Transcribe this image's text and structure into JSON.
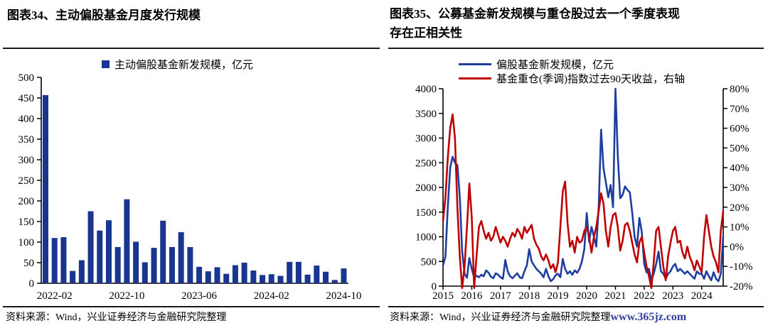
{
  "colors": {
    "navy": "#18368f",
    "blue_line": "#1d3e9e",
    "red_line": "#c00000",
    "axis": "#000000",
    "watermark_blue": "#31419f"
  },
  "left_panel": {
    "title": "图表34、主动偏股基金月度发行规模",
    "legend": "主动偏股基金新发规模，亿元",
    "source": "资料来源：Wind，兴业证券经济与金融研究院整理"
  },
  "right_panel": {
    "title_line1": "图表35、公募基金新发规模与重仓股过去一个季度表现",
    "title_line2": "存在正相关性",
    "legend_blue": "偏股基金新发规模，亿元",
    "legend_red": "基金重仓(季调)指数过去90天收益，右轴",
    "source": "资料来源：Wind，兴业证券经济与金融研究院整理",
    "watermark": "www.365jz.com"
  },
  "chart_data": [
    {
      "type": "bar",
      "title": "主动偏股基金月度发行规模",
      "ylabel": "亿元",
      "ylim": [
        0,
        500
      ],
      "ytick_step": 50,
      "grid": false,
      "categories": [
        "2022-01",
        "2022-02",
        "2022-03",
        "2022-04",
        "2022-05",
        "2022-06",
        "2022-07",
        "2022-08",
        "2022-09",
        "2022-10",
        "2022-11",
        "2022-12",
        "2023-01",
        "2023-02",
        "2023-03",
        "2023-04",
        "2023-05",
        "2023-06",
        "2023-07",
        "2023-08",
        "2023-09",
        "2023-10",
        "2023-11",
        "2023-12",
        "2024-01",
        "2024-02",
        "2024-03",
        "2024-04",
        "2024-05",
        "2024-06",
        "2024-07",
        "2024-08",
        "2024-09",
        "2024-10"
      ],
      "values": [
        457,
        110,
        112,
        30,
        56,
        175,
        128,
        153,
        88,
        204,
        101,
        51,
        86,
        152,
        88,
        124,
        88,
        40,
        29,
        39,
        23,
        44,
        50,
        31,
        20,
        22,
        18,
        52,
        52,
        21,
        43,
        28,
        8,
        36
      ],
      "x_tick_labels": [
        "2022-02",
        "2022-10",
        "2023-06",
        "2024-02",
        "2024-10"
      ],
      "x_tick_indices": [
        1,
        9,
        17,
        25,
        33
      ]
    },
    {
      "type": "line",
      "title": "公募基金新发规模与重仓股过去一个季度表现存在正相关性",
      "x_start": "2015-01",
      "x_end": "2024-10",
      "x_tick_labels": [
        "2015",
        "2016",
        "2017",
        "2018",
        "2019",
        "2020",
        "2021",
        "2022",
        "2023",
        "2024"
      ],
      "x_tick_indices": [
        0,
        12,
        24,
        36,
        48,
        60,
        72,
        84,
        96,
        108
      ],
      "left_axis": {
        "min": 0,
        "max": 4000,
        "step": 500
      },
      "right_axis": {
        "min": -20,
        "max": 80,
        "step": 10,
        "suffix": "%"
      },
      "grid": false,
      "legend_position": "top",
      "series": [
        {
          "name": "偏股基金新发规模，亿元",
          "axis": "left",
          "color_key": "blue_line",
          "values": [
            420,
            600,
            1600,
            2400,
            2620,
            2500,
            2450,
            1800,
            700,
            250,
            170,
            570,
            350,
            170,
            210,
            180,
            230,
            200,
            320,
            270,
            190,
            160,
            260,
            230,
            180,
            150,
            530,
            300,
            200,
            160,
            210,
            260,
            180,
            160,
            300,
            420,
            750,
            500,
            420,
            350,
            300,
            250,
            180,
            350,
            200,
            100,
            140,
            220,
            250,
            180,
            550,
            350,
            250,
            300,
            230,
            320,
            270,
            350,
            500,
            750,
            1480,
            900,
            1200,
            1000,
            800,
            1600,
            3170,
            2400,
            2100,
            1800,
            2050,
            1600,
            4000,
            2630,
            1780,
            1850,
            2020,
            1950,
            1900,
            1500,
            1000,
            800,
            1380,
            1100,
            450,
            280,
            350,
            120,
            250,
            450,
            700,
            300,
            250,
            150,
            250,
            300,
            400,
            450,
            300,
            350,
            300,
            250,
            300,
            250,
            200,
            150,
            300,
            250,
            250,
            150,
            300,
            200,
            120,
            280,
            150,
            100,
            250,
            1000
          ]
        },
        {
          "name": "基金重仓(季调)指数过去90天收益，右轴",
          "axis": "right",
          "color_key": "red_line",
          "values": [
            13,
            25,
            45,
            60,
            67,
            55,
            20,
            -5,
            -21,
            -10,
            10,
            32,
            15,
            -21,
            -5,
            10,
            13,
            8,
            4,
            7,
            3,
            5,
            10,
            6,
            2,
            5,
            3,
            0,
            4,
            7,
            5,
            9,
            7,
            4,
            10,
            7,
            9,
            11,
            4,
            1,
            -1,
            -5,
            -7,
            -4,
            -7,
            -11,
            -9,
            -13,
            -8,
            10,
            28,
            33,
            12,
            0,
            3,
            -3,
            5,
            2,
            3,
            8,
            10,
            5,
            -3,
            5,
            10,
            18,
            27,
            22,
            8,
            0,
            10,
            16,
            17,
            10,
            -2,
            3,
            11,
            12,
            8,
            2,
            -4,
            -8,
            2,
            5,
            -3,
            -10,
            -15,
            -21,
            -8,
            8,
            10,
            0,
            -10,
            -17,
            -5,
            2,
            8,
            10,
            2,
            3,
            -3,
            -6,
            0,
            -5,
            -8,
            -12,
            -7,
            -10,
            -13,
            5,
            16,
            8,
            0,
            -5,
            -8,
            -13,
            8,
            18
          ]
        }
      ]
    }
  ]
}
